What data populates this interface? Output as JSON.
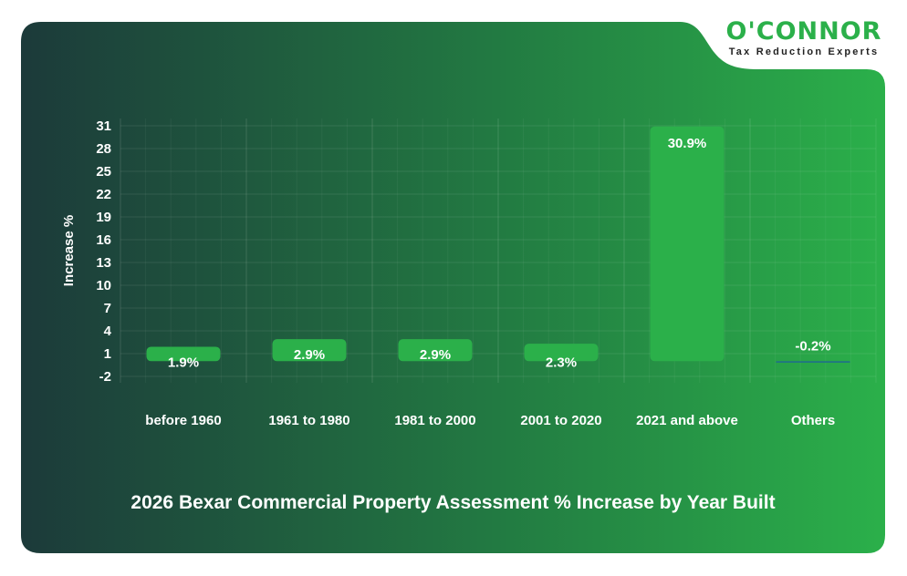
{
  "brand": {
    "name": "O'CONNOR",
    "tagline": "Tax Reduction Experts",
    "color": "#2bb04a"
  },
  "chart_data": {
    "type": "bar",
    "title": "2026 Bexar Commercial Property Assessment % Increase by Year Built",
    "xlabel": "",
    "ylabel": "Increase %",
    "categories": [
      "before 1960",
      "1961 to 1980",
      "1981 to 2000",
      "2001 to 2020",
      "2021 and above",
      "Others"
    ],
    "values": [
      1.9,
      2.9,
      2.9,
      2.3,
      30.9,
      -0.2
    ],
    "data_labels": [
      "1.9%",
      "2.9%",
      "2.9%",
      "2.3%",
      "30.9%",
      "-0.2%"
    ],
    "yticks": [
      31,
      28,
      25,
      22,
      19,
      16,
      13,
      10,
      7,
      4,
      1,
      -2
    ],
    "ylim": [
      -2,
      31
    ],
    "grid": true,
    "colors": {
      "bar": "#2bb04a",
      "negative_bar": "#1f6f8b",
      "background_start": "#1c3a3a",
      "background_end": "#2bb04a"
    }
  }
}
